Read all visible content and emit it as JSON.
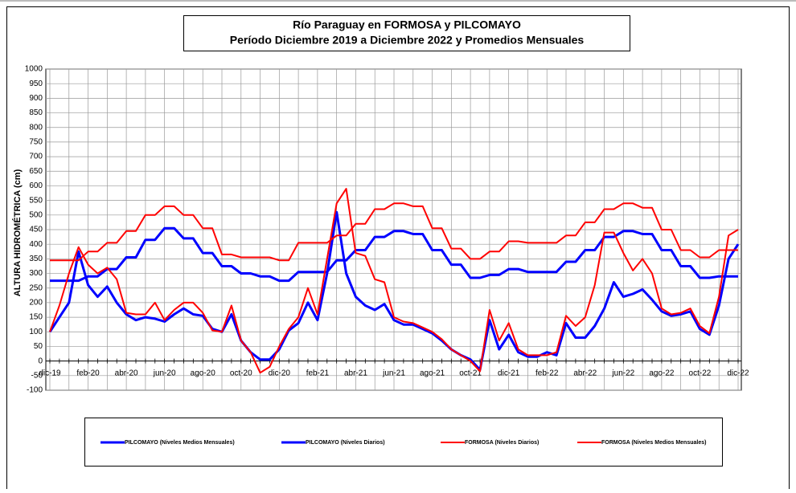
{
  "chart_data": {
    "type": "line",
    "title": "Río Paraguay en FORMOSA y PILCOMAYO",
    "subtitle": "Período Diciembre 2019 a Diciembre 2022 y Promedios Mensuales",
    "y_label": "ALTURA HIDROMÉTRICA (cm)",
    "categories": [
      "dic-19",
      null,
      null,
      null,
      "feb-20",
      null,
      null,
      null,
      "abr-20",
      null,
      null,
      null,
      "jun-20",
      null,
      null,
      null,
      "ago-20",
      null,
      null,
      null,
      "oct-20",
      null,
      null,
      null,
      "dic-20",
      null,
      null,
      null,
      "feb-21",
      null,
      null,
      null,
      "abr-21",
      null,
      null,
      null,
      "jun-21",
      null,
      null,
      null,
      "ago-21",
      null,
      null,
      null,
      "oct-21",
      null,
      null,
      null,
      "dic-21",
      null,
      null,
      null,
      "feb-22",
      null,
      null,
      null,
      "abr-22",
      null,
      null,
      null,
      "jun-22",
      null,
      null,
      null,
      "ago-22",
      null,
      null,
      null,
      "oct-22",
      null,
      null,
      null,
      "dic-22"
    ],
    "ylim": [
      -100,
      1000
    ],
    "yticks": [
      -100,
      -50,
      0,
      50,
      100,
      150,
      200,
      250,
      300,
      350,
      400,
      450,
      500,
      550,
      600,
      650,
      700,
      750,
      800,
      850,
      900,
      950,
      1000
    ],
    "grid": true,
    "series": [
      {
        "name": "PILCOMAYO (Niveles Medios Mensuales)",
        "color": "#0000ff",
        "width": 3,
        "values": [
          275,
          275,
          275,
          275,
          290,
          290,
          315,
          315,
          355,
          355,
          415,
          415,
          455,
          455,
          420,
          420,
          370,
          370,
          325,
          325,
          300,
          300,
          290,
          290,
          275,
          275,
          305,
          305,
          305,
          305,
          345,
          345,
          380,
          380,
          425,
          425,
          445,
          445,
          435,
          435,
          380,
          380,
          330,
          330,
          285,
          285,
          295,
          295,
          315,
          315,
          305,
          305,
          305,
          305,
          340,
          340,
          380,
          380,
          425,
          425,
          445,
          445,
          435,
          435,
          380,
          380,
          325,
          325,
          285,
          285,
          290,
          290,
          290
        ]
      },
      {
        "name": "PILCOMAYO (Niveles Diarios)",
        "color": "#0000ff",
        "width": 3,
        "values": [
          100,
          150,
          200,
          375,
          260,
          220,
          255,
          200,
          160,
          140,
          150,
          145,
          135,
          160,
          180,
          160,
          155,
          110,
          100,
          160,
          70,
          30,
          5,
          5,
          40,
          105,
          130,
          200,
          140,
          300,
          510,
          300,
          220,
          190,
          175,
          195,
          140,
          125,
          125,
          110,
          95,
          70,
          40,
          20,
          5,
          -30,
          140,
          40,
          90,
          30,
          15,
          15,
          30,
          20,
          130,
          80,
          80,
          120,
          180,
          270,
          220,
          230,
          245,
          210,
          170,
          155,
          160,
          170,
          110,
          90,
          190,
          350,
          400
        ]
      },
      {
        "name": "FORMOSA (Niveles Diarios)",
        "color": "#ff0000",
        "width": 2,
        "values": [
          100,
          190,
          300,
          390,
          330,
          300,
          320,
          280,
          165,
          160,
          160,
          200,
          140,
          175,
          200,
          200,
          165,
          105,
          100,
          190,
          70,
          30,
          -40,
          -20,
          50,
          110,
          150,
          250,
          160,
          350,
          540,
          590,
          370,
          360,
          280,
          270,
          150,
          135,
          130,
          115,
          100,
          75,
          40,
          20,
          0,
          -35,
          175,
          70,
          130,
          40,
          20,
          20,
          20,
          30,
          155,
          120,
          150,
          260,
          440,
          440,
          370,
          310,
          350,
          300,
          180,
          160,
          165,
          180,
          120,
          95,
          220,
          430,
          450
        ]
      },
      {
        "name": "FORMOSA (Niveles Medios Mensuales)",
        "color": "#ff0000",
        "width": 2,
        "values": [
          345,
          345,
          345,
          345,
          375,
          375,
          405,
          405,
          445,
          445,
          500,
          500,
          530,
          530,
          500,
          500,
          455,
          455,
          365,
          365,
          355,
          355,
          355,
          355,
          345,
          345,
          405,
          405,
          405,
          405,
          430,
          430,
          470,
          470,
          520,
          520,
          540,
          540,
          530,
          530,
          455,
          455,
          385,
          385,
          350,
          350,
          375,
          375,
          410,
          410,
          405,
          405,
          405,
          405,
          430,
          430,
          475,
          475,
          520,
          520,
          540,
          540,
          525,
          525,
          450,
          450,
          380,
          380,
          355,
          355,
          380,
          380,
          380
        ]
      }
    ]
  }
}
